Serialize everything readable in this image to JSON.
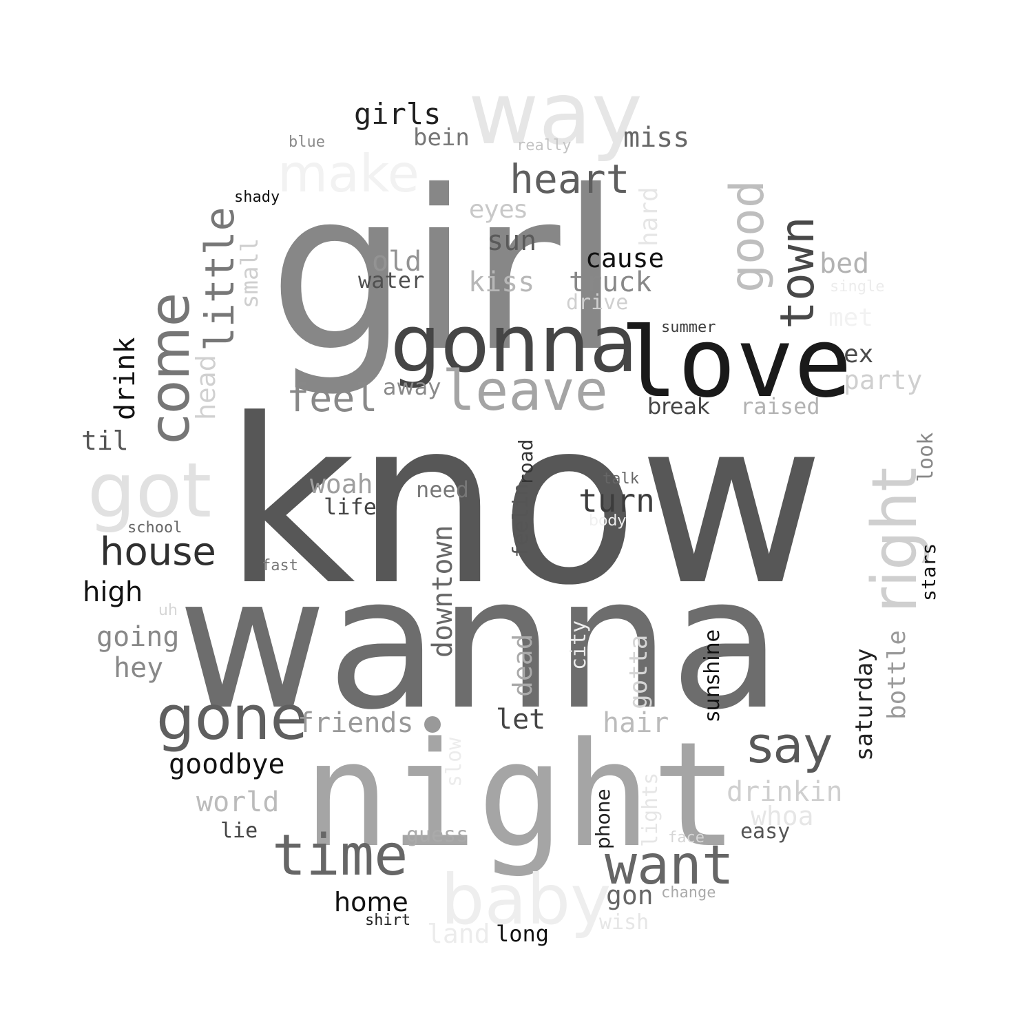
{
  "words": [
    {
      "text": "know",
      "color": "#575757"
    },
    {
      "text": "wanna",
      "color": "#6d6d6d"
    },
    {
      "text": "girl",
      "color": "#878787"
    },
    {
      "text": "night",
      "color": "#a5a5a5"
    },
    {
      "text": "love",
      "color": "#1a1a1a"
    },
    {
      "text": "gonna",
      "color": "#454545"
    },
    {
      "text": "way",
      "color": "#e6e6e6"
    },
    {
      "text": "got",
      "color": "#e1e1e1"
    },
    {
      "text": "baby",
      "color": "#eeeeee"
    },
    {
      "text": "time",
      "color": "#666666"
    },
    {
      "text": "gone",
      "color": "#5f5f5f"
    },
    {
      "text": "come",
      "color": "#767676"
    },
    {
      "text": "right",
      "color": "#cfcfcf"
    },
    {
      "text": "leave",
      "color": "#a4a4a4"
    },
    {
      "text": "make",
      "color": "#f2f2f2"
    },
    {
      "text": "want",
      "color": "#666666"
    },
    {
      "text": "say",
      "color": "#585858"
    },
    {
      "text": "good",
      "color": "#bebebe"
    },
    {
      "text": "town",
      "color": "#484848"
    },
    {
      "text": "little",
      "color": "#777777"
    },
    {
      "text": "heart",
      "color": "#5e5e5e"
    },
    {
      "text": "house",
      "color": "#303030"
    },
    {
      "text": "feel",
      "color": "#888888"
    },
    {
      "text": "turn",
      "color": "#3c3c3c"
    },
    {
      "text": "girls",
      "color": "#202020"
    },
    {
      "text": "miss",
      "color": "#666666"
    },
    {
      "text": "bein",
      "color": "#767676"
    },
    {
      "text": "cause",
      "color": "#111111"
    },
    {
      "text": "truck",
      "color": "#888888"
    },
    {
      "text": "kiss",
      "color": "#b7b7b7"
    },
    {
      "text": "old",
      "color": "#939393"
    },
    {
      "text": "sun",
      "color": "#5a5a5a"
    },
    {
      "text": "eyes",
      "color": "#c8c8c8"
    },
    {
      "text": "water",
      "color": "#505050"
    },
    {
      "text": "drive",
      "color": "#cfcfcf"
    },
    {
      "text": "bed",
      "color": "#b2b2b2"
    },
    {
      "text": "party",
      "color": "#cfcfcf"
    },
    {
      "text": "ex",
      "color": "#4b4b4b"
    },
    {
      "text": "met",
      "color": "#f2f2f2"
    },
    {
      "text": "single",
      "color": "#ececec"
    },
    {
      "text": "summer",
      "color": "#3e3e3e"
    },
    {
      "text": "break",
      "color": "#454545"
    },
    {
      "text": "raised",
      "color": "#b2b2b2"
    },
    {
      "text": "away",
      "color": "#8a8a8a"
    },
    {
      "text": "drink",
      "color": "#111111"
    },
    {
      "text": "head",
      "color": "#d0d0d0"
    },
    {
      "text": "small",
      "color": "#cfcfcf"
    },
    {
      "text": "til",
      "color": "#555555"
    },
    {
      "text": "hard",
      "color": "#e6e6e6"
    },
    {
      "text": "shady",
      "color": "#111111"
    },
    {
      "text": "blue",
      "color": "#8a8a8a"
    },
    {
      "text": "really",
      "color": "#c4c4c4"
    },
    {
      "text": "road",
      "color": "#333333"
    },
    {
      "text": "feelin",
      "color": "#555555"
    },
    {
      "text": "woah",
      "color": "#9e9e9e"
    },
    {
      "text": "need",
      "color": "#777777"
    },
    {
      "text": "life",
      "color": "#444444"
    },
    {
      "text": "talk",
      "color": "#666666"
    },
    {
      "text": "body",
      "color": "#f0f0f0"
    },
    {
      "text": "school",
      "color": "#666666"
    },
    {
      "text": "fast",
      "color": "#777777"
    },
    {
      "text": "high",
      "color": "#111111"
    },
    {
      "text": "uh",
      "color": "#d6d6d6"
    },
    {
      "text": "going",
      "color": "#888888"
    },
    {
      "text": "hey",
      "color": "#888888"
    },
    {
      "text": "downtown",
      "color": "#666666"
    },
    {
      "text": "dead",
      "color": "#aaaaaa"
    },
    {
      "text": "city",
      "color": "#ececec"
    },
    {
      "text": "gotta",
      "color": "#d5d5d5"
    },
    {
      "text": "sunshine",
      "color": "#111111"
    },
    {
      "text": "saturday",
      "color": "#222222"
    },
    {
      "text": "bottle",
      "color": "#999999"
    },
    {
      "text": "look",
      "color": "#888888"
    },
    {
      "text": "stars",
      "color": "#111111"
    },
    {
      "text": "friends",
      "color": "#999999"
    },
    {
      "text": "let",
      "color": "#444444"
    },
    {
      "text": "hair",
      "color": "#bbbbbb"
    },
    {
      "text": "slow",
      "color": "#ececec"
    },
    {
      "text": "goodbye",
      "color": "#111111"
    },
    {
      "text": "world",
      "color": "#bbbbbb"
    },
    {
      "text": "lie",
      "color": "#444444"
    },
    {
      "text": "guess",
      "color": "#aaaaaa"
    },
    {
      "text": "drinkin",
      "color": "#cfcfcf"
    },
    {
      "text": "whoa",
      "color": "#e6e6e6"
    },
    {
      "text": "easy",
      "color": "#555555"
    },
    {
      "text": "face",
      "color": "#d6d6d6"
    },
    {
      "text": "lights",
      "color": "#e6e6e6"
    },
    {
      "text": "phone",
      "color": "#222222"
    },
    {
      "text": "gon",
      "color": "#666666"
    },
    {
      "text": "change",
      "color": "#aaaaaa"
    },
    {
      "text": "wish",
      "color": "#e6e6e6"
    },
    {
      "text": "home",
      "color": "#111111"
    },
    {
      "text": "shirt",
      "color": "#222222"
    },
    {
      "text": "land",
      "color": "#ececec"
    },
    {
      "text": "long",
      "color": "#111111"
    }
  ]
}
